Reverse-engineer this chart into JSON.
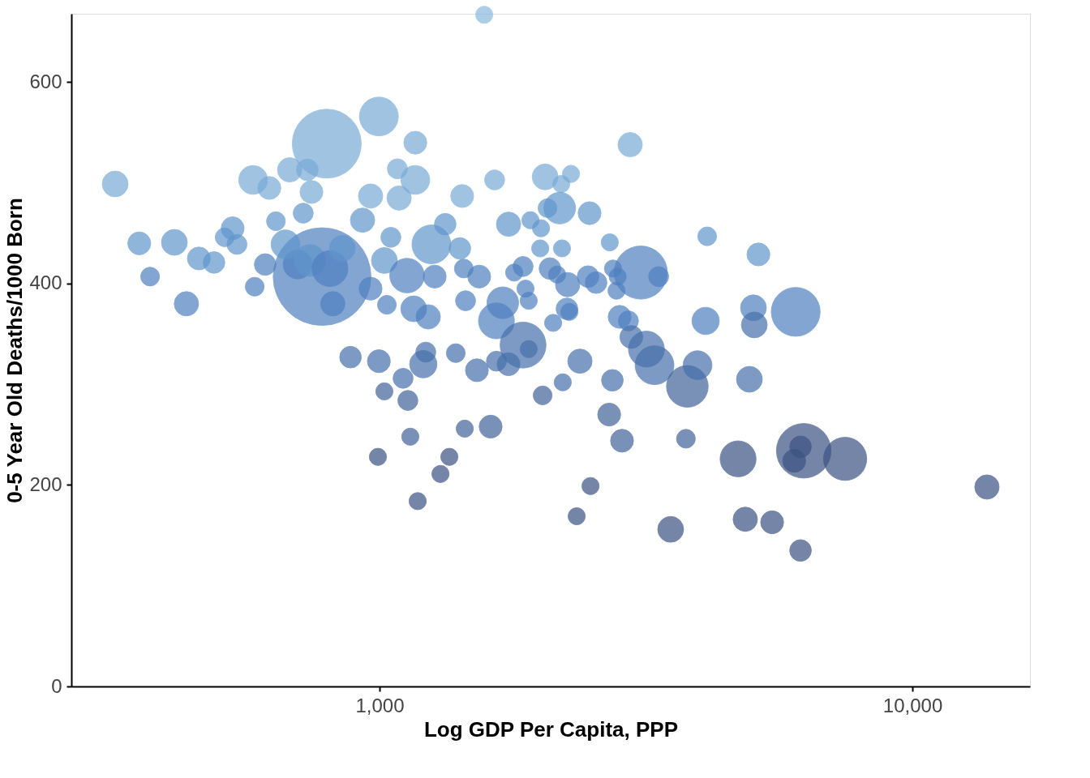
{
  "chart_data": {
    "type": "bubble",
    "xlabel": "Log GDP Per Capita, PPP",
    "ylabel": "0-5 Year Old Deaths/1000 Born",
    "log": "x",
    "grid": false,
    "legend": false,
    "xlim": [
      264,
      16620
    ],
    "xticks": [
      {
        "value": 1000,
        "label": "1,000"
      },
      {
        "value": 10000,
        "label": "10,000"
      }
    ],
    "ylim": [
      0,
      668
    ],
    "yticks": [
      0,
      200,
      400,
      600
    ],
    "x": [
      319,
      354,
      371,
      412,
      434,
      458,
      489,
      512,
      530,
      540,
      583,
      579,
      621,
      610,
      639,
      678,
      732,
      745,
      719,
      796,
      780,
      702,
      666,
      740,
      807,
      851,
      817,
      882,
      929,
      962,
      962,
      997,
      997,
      1021,
      993,
      1032,
      1050,
      1088,
      1080,
      1167,
      1167,
      1107,
      1130,
      1142,
      1179,
      1159,
      1208,
      1221,
      1234,
      1269,
      1251,
      1328,
      1415,
      1429,
      1439,
      1450,
      1390,
      1445,
      1352,
      1301,
      1523,
      1538,
      1572,
      1616,
      1644,
      1746,
      1657,
      1746,
      1703,
      1657,
      1789,
      1859,
      1859,
      1905,
      1879,
      1905,
      1919,
      2009,
      2002,
      2045,
      2066,
      2023,
      2088,
      2117,
      2154,
      2200,
      2193,
      2178,
      2287,
      2207,
      2247,
      2254,
      2271,
      2377,
      2344,
      2488,
      2462,
      2478,
      2549,
      2704,
      2735,
      2697,
      2822,
      2851,
      2784,
      2798,
      2742,
      2931,
      2953,
      3092,
      2968,
      3168,
      3281,
      3340,
      3518,
      3758,
      3781,
      3951,
      4092,
      4119,
      4708,
      4856,
      4944,
      5031,
      5050,
      5140,
      5454,
      6039,
      6166,
      6252,
      6000,
      6166,
      7477,
      13800,
      1021,
      1126
    ],
    "values": [
      499,
      440,
      407,
      441,
      380,
      425,
      421,
      446,
      455,
      439,
      397,
      503,
      495,
      419,
      462,
      513,
      513,
      491,
      470,
      539,
      407,
      419,
      439,
      423,
      415,
      435,
      380,
      327,
      463,
      487,
      395,
      566,
      323,
      293,
      228,
      379,
      446,
      485,
      514,
      540,
      503,
      306,
      284,
      248,
      184,
      375,
      320,
      332,
      367,
      407,
      439,
      459,
      435,
      487,
      415,
      383,
      331,
      256,
      228,
      211,
      314,
      407,
      667,
      258,
      503,
      459,
      323,
      320,
      381,
      363,
      411,
      417,
      339,
      335,
      395,
      383,
      463,
      455,
      435,
      506,
      475,
      289,
      415,
      361,
      409,
      435,
      499,
      475,
      509,
      302,
      375,
      399,
      372,
      323,
      169,
      199,
      407,
      470,
      401,
      441,
      304,
      270,
      367,
      244,
      393,
      407,
      415,
      363,
      538,
      411,
      347,
      335,
      319,
      407,
      156,
      246,
      298,
      319,
      363,
      447,
      226,
      166,
      305,
      376,
      359,
      429,
      163,
      372,
      135,
      234,
      224,
      238,
      226,
      198,
      423,
      408
    ],
    "sizes": [
      0.07,
      0.055,
      0.037,
      0.07,
      0.062,
      0.055,
      0.049,
      0.037,
      0.055,
      0.042,
      0.037,
      0.087,
      0.055,
      0.049,
      0.037,
      0.062,
      0.049,
      0.055,
      0.042,
      0.498,
      1,
      0.087,
      0.087,
      0.105,
      0.135,
      0.07,
      0.062,
      0.049,
      0.062,
      0.062,
      0.055,
      0.158,
      0.055,
      0.031,
      0.031,
      0.037,
      0.042,
      0.062,
      0.042,
      0.055,
      0.087,
      0.042,
      0.042,
      0.031,
      0.031,
      0.07,
      0.078,
      0.042,
      0.062,
      0.055,
      0.158,
      0.049,
      0.049,
      0.055,
      0.037,
      0.042,
      0.037,
      0.031,
      0.031,
      0.031,
      0.055,
      0.055,
      0.031,
      0.055,
      0.042,
      0.062,
      0.042,
      0.055,
      0.105,
      0.135,
      0.031,
      0.042,
      0.221,
      0.031,
      0.031,
      0.031,
      0.031,
      0.031,
      0.031,
      0.07,
      0.037,
      0.037,
      0.049,
      0.031,
      0.031,
      0.031,
      0.031,
      0.105,
      0.031,
      0.031,
      0.049,
      0.062,
      0.031,
      0.062,
      0.031,
      0.031,
      0.049,
      0.055,
      0.049,
      0.031,
      0.049,
      0.055,
      0.055,
      0.055,
      0.031,
      0.031,
      0.031,
      0.042,
      0.062,
      0.296,
      0.055,
      0.135,
      0.158,
      0.042,
      0.07,
      0.037,
      0.182,
      0.087,
      0.078,
      0.037,
      0.135,
      0.062,
      0.07,
      0.07,
      0.07,
      0.055,
      0.055,
      0.25,
      0.049,
      0.312,
      0.055,
      0.049,
      0.195,
      0.062,
      0.07,
      0.125
    ],
    "colors": [
      "#78aad6",
      "#6096cc",
      "#4f80c0",
      "#6096cc",
      "#4f80c0",
      "#6096cc",
      "#6096cc",
      "#6096cc",
      "#6096cc",
      "#6096cc",
      "#4f80c0",
      "#78aad6",
      "#78aad6",
      "#4f80c0",
      "#6096cc",
      "#78aad6",
      "#78aad6",
      "#78aad6",
      "#6096cc",
      "#78aad6",
      "#4f80c0",
      "#4f80c0",
      "#6096cc",
      "#6096cc",
      "#4f80c0",
      "#6096cc",
      "#4f80c0",
      "#4670ab",
      "#6096cc",
      "#78aad6",
      "#4f80c0",
      "#78aad6",
      "#4670ab",
      "#41629a",
      "#3b5283",
      "#4f80c0",
      "#6096cc",
      "#78aad6",
      "#78aad6",
      "#78aad6",
      "#78aad6",
      "#4670ab",
      "#41629a",
      "#41629a",
      "#3b5283",
      "#4f80c0",
      "#4670ab",
      "#4670ab",
      "#4f80c0",
      "#4f80c0",
      "#6096cc",
      "#6096cc",
      "#6096cc",
      "#78aad6",
      "#4f80c0",
      "#4f80c0",
      "#4670ab",
      "#41629a",
      "#3b5283",
      "#3b5283",
      "#4670ab",
      "#4f80c0",
      "#8ab9de",
      "#41629a",
      "#78aad6",
      "#6096cc",
      "#4670ab",
      "#4670ab",
      "#4f80c0",
      "#4f80c0",
      "#4f80c0",
      "#4f80c0",
      "#4670ab",
      "#4670ab",
      "#4f80c0",
      "#4f80c0",
      "#6096cc",
      "#6096cc",
      "#6096cc",
      "#78aad6",
      "#6096cc",
      "#41629a",
      "#4f80c0",
      "#4f80c0",
      "#4f80c0",
      "#6096cc",
      "#78aad6",
      "#6096cc",
      "#78aad6",
      "#4670ab",
      "#4f80c0",
      "#4f80c0",
      "#4f80c0",
      "#4670ab",
      "#3b5283",
      "#3b5283",
      "#4f80c0",
      "#6096cc",
      "#4f80c0",
      "#6096cc",
      "#4670ab",
      "#41629a",
      "#4f80c0",
      "#41629a",
      "#4f80c0",
      "#4f80c0",
      "#4f80c0",
      "#4f80c0",
      "#78aad6",
      "#4f80c0",
      "#4670ab",
      "#4670ab",
      "#4670ab",
      "#4f80c0",
      "#3b5283",
      "#41629a",
      "#41629a",
      "#4670ab",
      "#4f80c0",
      "#6096cc",
      "#3b5283",
      "#3b5283",
      "#4670ab",
      "#4f80c0",
      "#4670ab",
      "#6096cc",
      "#3b5283",
      "#4f80c0",
      "#3b5283",
      "#3b5283",
      "#3b5283",
      "#3b5283",
      "#3b5283",
      "#3b5283",
      "#6096cc",
      "#4f80c0"
    ]
  }
}
